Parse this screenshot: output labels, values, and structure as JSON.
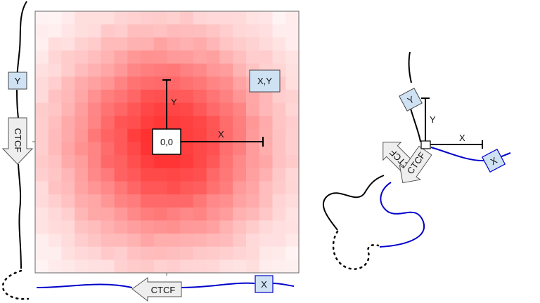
{
  "left_panel": {
    "anchor_y_label": "Y",
    "ctcf_vertical_label": "CTCF",
    "ctcf_horizontal_label": "CTCF",
    "anchor_x_label": "X",
    "origin_label": "0,0",
    "corner_label": "X,Y",
    "axis_x_label": "X",
    "axis_y_label": "Y"
  },
  "right_panel": {
    "anchor_y_label": "Y",
    "anchor_x_label": "X",
    "ctcf_black_label": "CTCF",
    "ctcf_blue_label": "CTCF",
    "axis_x_label": "X",
    "axis_y_label": "Y"
  },
  "colors": {
    "heat_peak": "#ff2a2a",
    "heat_low": "#ffffff",
    "anchor_fill": "#cfe2f3",
    "ctcf_fill": "#eeeeee",
    "chain_black": "#000000",
    "chain_blue": "#0000cc"
  }
}
